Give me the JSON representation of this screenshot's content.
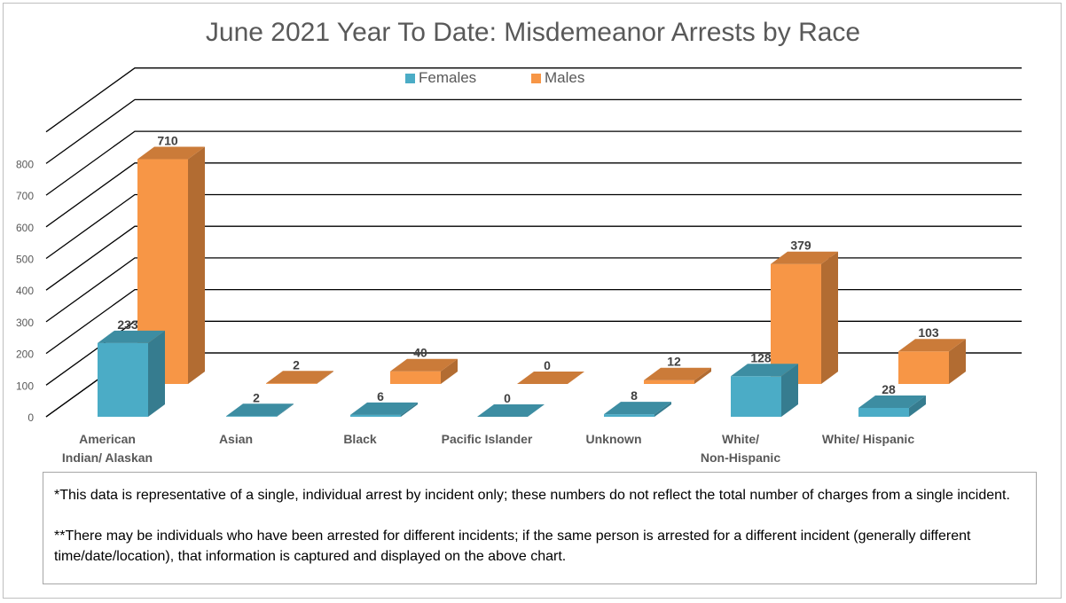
{
  "chart_data": {
    "type": "bar",
    "title": "June 2021 Year To Date: Misdemeanor Arrests by Race",
    "categories": [
      [
        "American",
        "Indian/ Alaskan"
      ],
      [
        "Asian"
      ],
      [
        "Black"
      ],
      [
        "Pacific Islander"
      ],
      [
        "Unknown"
      ],
      [
        "White/",
        "Non-Hispanic"
      ],
      [
        "White/ Hispanic"
      ]
    ],
    "series": [
      {
        "name": "Females",
        "values": [
          233,
          2,
          6,
          0,
          8,
          128,
          28
        ],
        "color": "#4bacc6"
      },
      {
        "name": "Males",
        "values": [
          710,
          2,
          40,
          0,
          12,
          379,
          103
        ],
        "color": "#f79646"
      }
    ],
    "yticks": [
      "0",
      "100",
      "200",
      "300",
      "400",
      "500",
      "600",
      "700",
      "800"
    ],
    "ylim": [
      0,
      900
    ],
    "three_d": true,
    "grid": true,
    "legend_position": "top"
  },
  "notes": {
    "line1": "*This data is representative of a single, individual arrest by incident only; these numbers do not reflect the total number of charges from a single incident.",
    "line2": "**There may be individuals who have been arrested for different incidents; if the same person is arrested for a different incident (generally different time/date/location), that information is captured and displayed on the above chart."
  }
}
